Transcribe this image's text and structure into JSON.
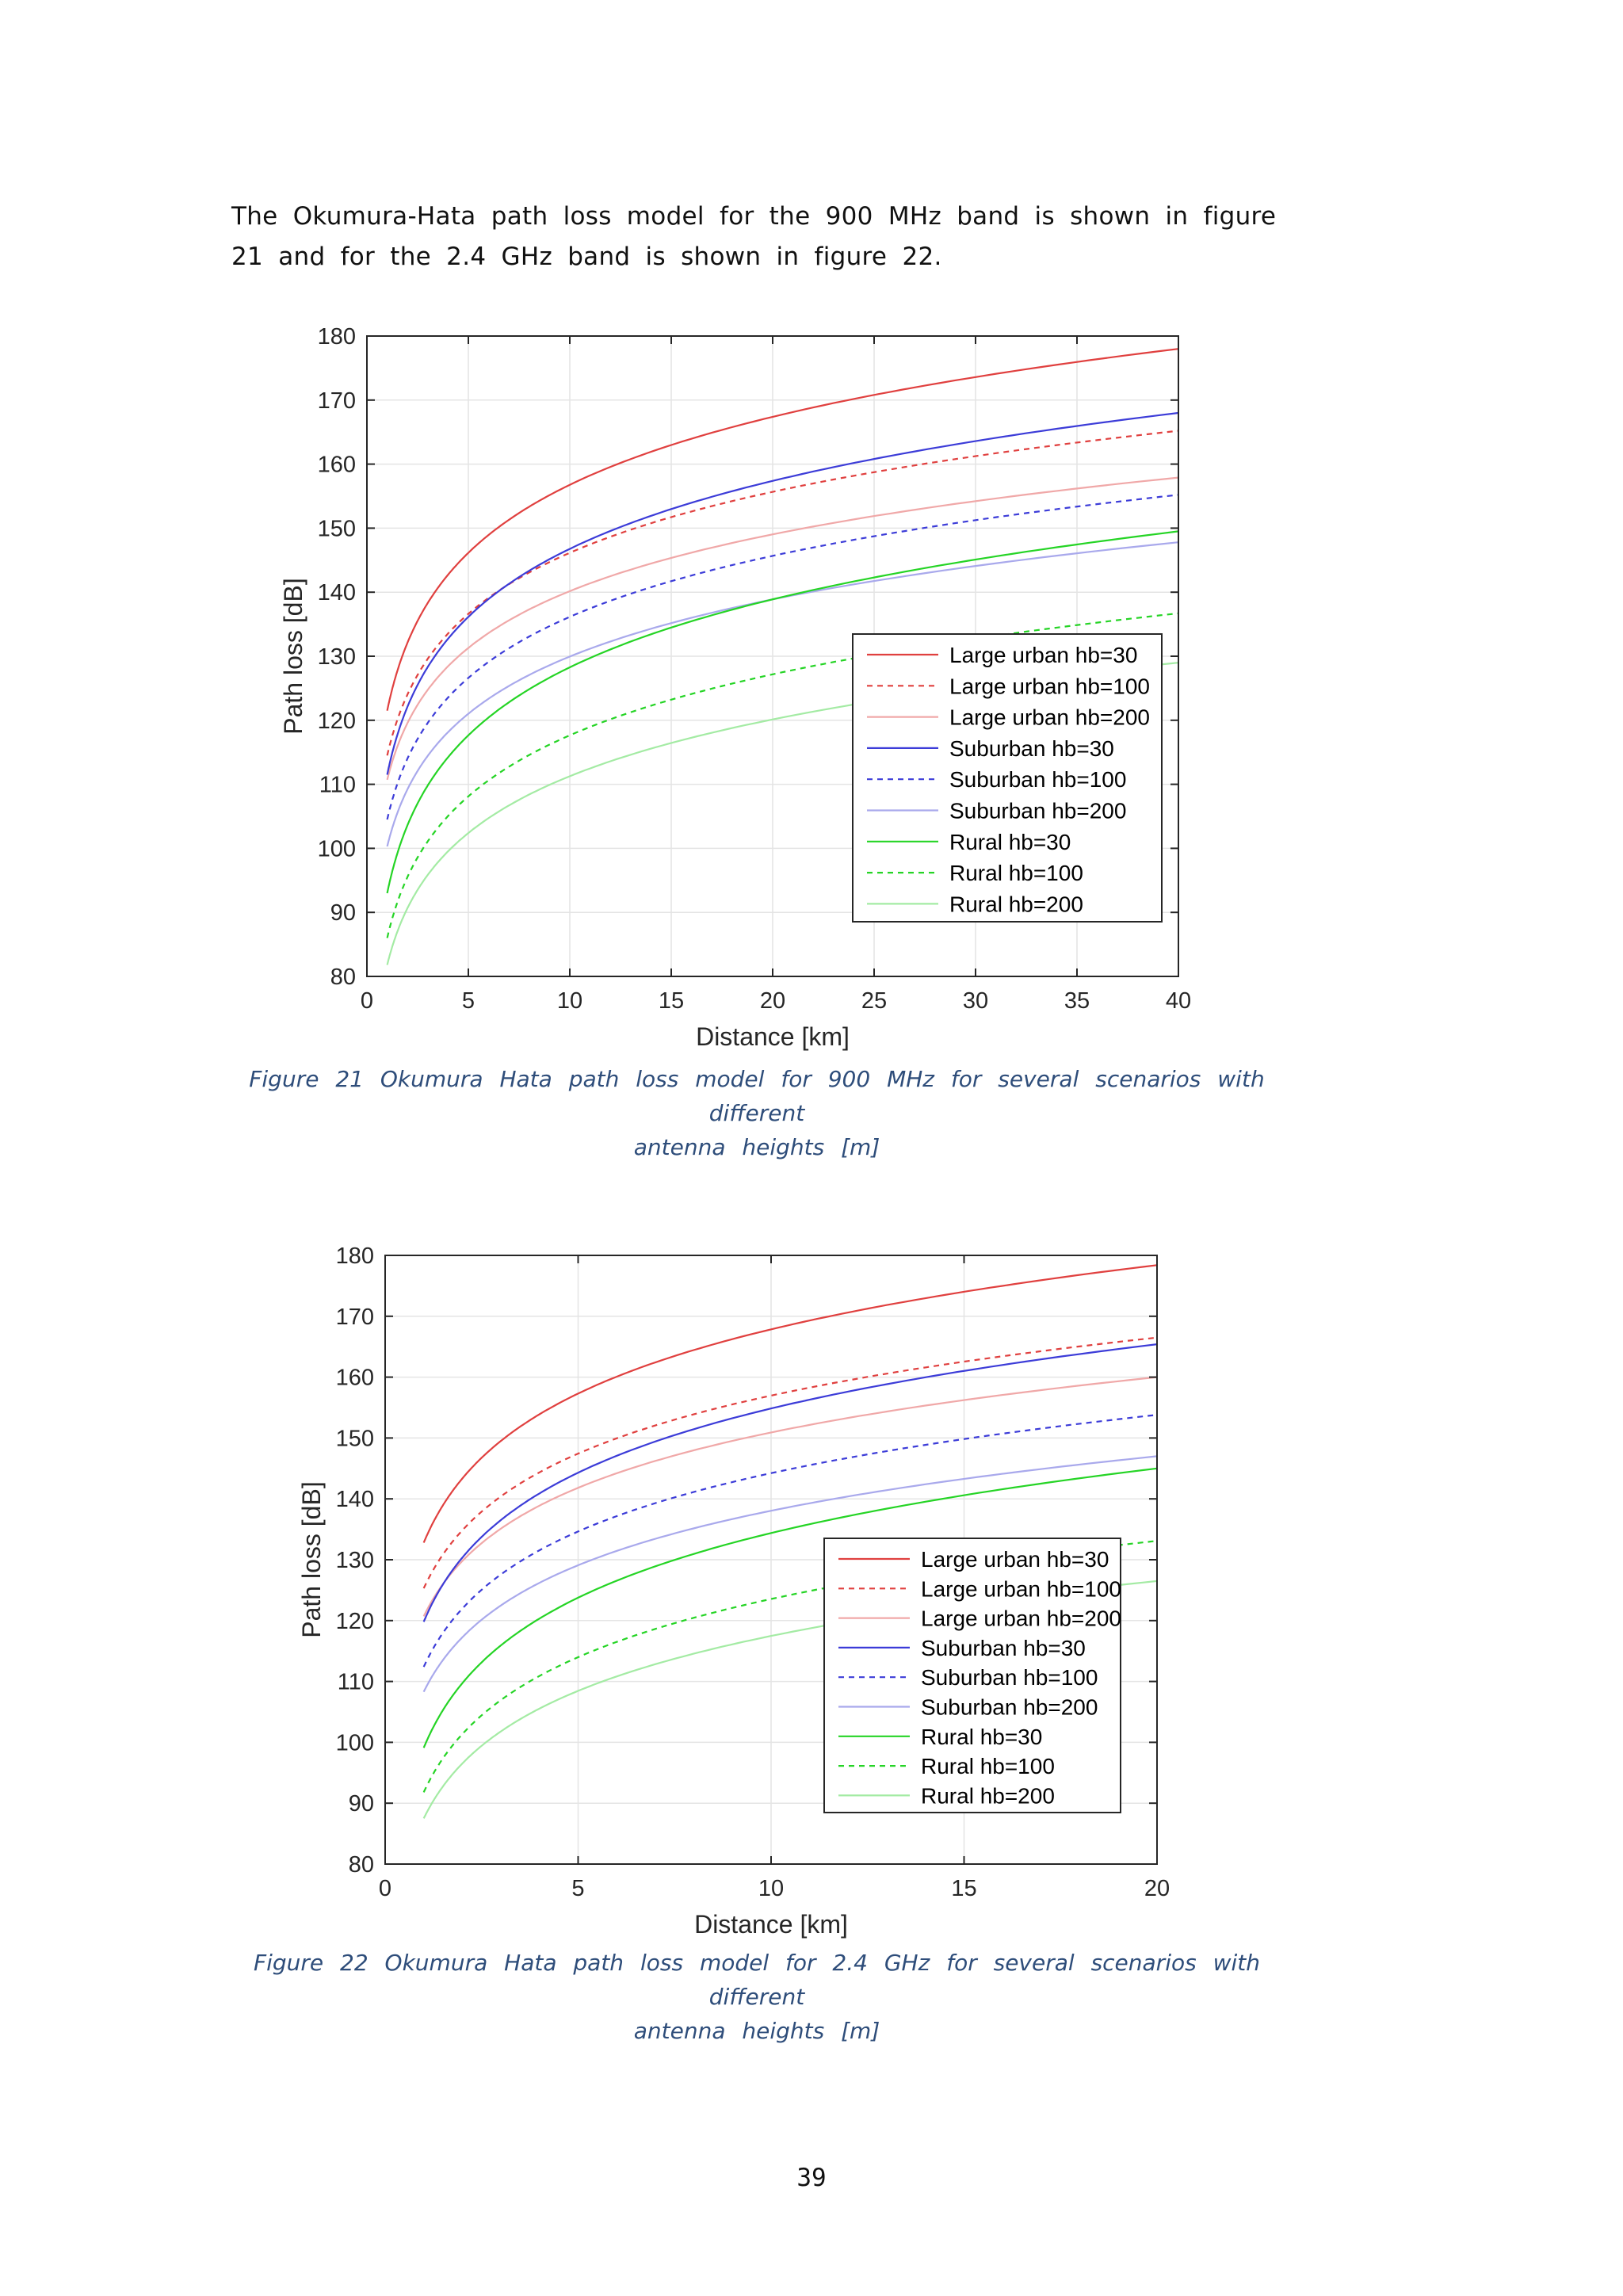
{
  "document": {
    "paragraph": "The Okumura-Hata path loss model for the 900 MHz band is shown in figure 21 and for the 2.4 GHz band is shown in figure 22.",
    "page_number": "39"
  },
  "style": {
    "colors": {
      "large_urban": "#e0403f",
      "large_urban_light": "#f0a8a8",
      "suburban": "#3c3cd8",
      "suburban_light": "#a9a9ec",
      "rural": "#25d425",
      "rural_light": "#a4eba4",
      "caption": "#2e4d7a"
    }
  },
  "figures": [
    {
      "caption_line1": "Figure 21 Okumura Hata path loss model for 900 MHz for several scenarios with different",
      "caption_line2": "antenna heights [m]"
    },
    {
      "caption_line1": "Figure 22 Okumura Hata path loss model for 2.4 GHz for several scenarios with different",
      "caption_line2": "antenna heights [m]"
    }
  ],
  "chart_data": [
    {
      "type": "line",
      "xlabel": "Distance [km]",
      "ylabel": "Path loss [dB]",
      "xlim": [
        0,
        40
      ],
      "ylim": [
        80,
        180
      ],
      "xticks": [
        0,
        5,
        10,
        15,
        20,
        25,
        30,
        35,
        40
      ],
      "yticks": [
        80,
        90,
        100,
        110,
        120,
        130,
        140,
        150,
        160,
        170,
        180
      ],
      "grid": true,
      "legend_position": "lower-right",
      "series": [
        {
          "name": "Large urban hb=30",
          "style": "solid",
          "color_key": "large_urban",
          "x": [
            1,
            40
          ],
          "y": [
            121.5,
            178.0
          ]
        },
        {
          "name": "Large urban hb=100",
          "style": "dashed",
          "color_key": "large_urban",
          "x": [
            1,
            40
          ],
          "y": [
            114.5,
            165.2
          ]
        },
        {
          "name": "Large urban hb=200",
          "style": "solid",
          "color_key": "large_urban_light",
          "x": [
            1,
            40
          ],
          "y": [
            110.7,
            157.9
          ]
        },
        {
          "name": "Suburban hb=30",
          "style": "solid",
          "color_key": "suburban",
          "x": [
            1,
            40
          ],
          "y": [
            111.5,
            168.0
          ]
        },
        {
          "name": "Suburban hb=100",
          "style": "dashed",
          "color_key": "suburban",
          "x": [
            1,
            40
          ],
          "y": [
            104.5,
            155.2
          ]
        },
        {
          "name": "Suburban hb=200",
          "style": "solid",
          "color_key": "suburban_light",
          "x": [
            1,
            40
          ],
          "y": [
            100.3,
            147.8
          ]
        },
        {
          "name": "Rural hb=30",
          "style": "solid",
          "color_key": "rural",
          "x": [
            1,
            40
          ],
          "y": [
            93.0,
            149.5
          ]
        },
        {
          "name": "Rural hb=100",
          "style": "dashed",
          "color_key": "rural",
          "x": [
            1,
            40
          ],
          "y": [
            86.0,
            136.7
          ]
        },
        {
          "name": "Rural hb=200",
          "style": "solid",
          "color_key": "rural_light",
          "x": [
            1,
            40
          ],
          "y": [
            81.8,
            129.0
          ]
        }
      ]
    },
    {
      "type": "line",
      "xlabel": "Distance [km]",
      "ylabel": "Path loss [dB]",
      "xlim": [
        0,
        20
      ],
      "ylim": [
        80,
        180
      ],
      "xticks": [
        0,
        5,
        10,
        15,
        20
      ],
      "yticks": [
        80,
        90,
        100,
        110,
        120,
        130,
        140,
        150,
        160,
        170,
        180
      ],
      "grid": true,
      "legend_position": "lower-right",
      "series": [
        {
          "name": "Large urban hb=30",
          "style": "solid",
          "color_key": "large_urban",
          "x": [
            1,
            20
          ],
          "y": [
            132.8,
            178.4
          ]
        },
        {
          "name": "Large urban hb=100",
          "style": "dashed",
          "color_key": "large_urban",
          "x": [
            1,
            20
          ],
          "y": [
            125.3,
            166.5
          ]
        },
        {
          "name": "Large urban hb=200",
          "style": "solid",
          "color_key": "large_urban_light",
          "x": [
            1,
            20
          ],
          "y": [
            120.7,
            160.0
          ]
        },
        {
          "name": "Suburban hb=30",
          "style": "solid",
          "color_key": "suburban",
          "x": [
            1,
            20
          ],
          "y": [
            119.8,
            165.4
          ]
        },
        {
          "name": "Suburban hb=100",
          "style": "dashed",
          "color_key": "suburban",
          "x": [
            1,
            20
          ],
          "y": [
            112.4,
            153.8
          ]
        },
        {
          "name": "Suburban hb=200",
          "style": "solid",
          "color_key": "suburban_light",
          "x": [
            1,
            20
          ],
          "y": [
            108.3,
            147.0
          ]
        },
        {
          "name": "Rural hb=30",
          "style": "solid",
          "color_key": "rural",
          "x": [
            1,
            20
          ],
          "y": [
            99.1,
            145.0
          ]
        },
        {
          "name": "Rural hb=100",
          "style": "dashed",
          "color_key": "rural",
          "x": [
            1,
            20
          ],
          "y": [
            91.8,
            133.1
          ]
        },
        {
          "name": "Rural hb=200",
          "style": "solid",
          "color_key": "rural_light",
          "x": [
            1,
            20
          ],
          "y": [
            87.5,
            126.5
          ]
        }
      ]
    }
  ]
}
